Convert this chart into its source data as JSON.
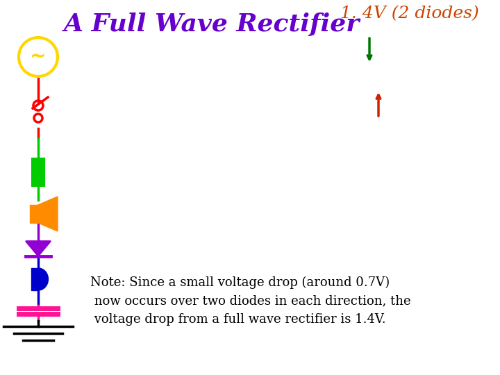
{
  "title": "A Full Wave Rectifier",
  "title_color": "#6600CC",
  "title_fontsize": 26,
  "title_style": "italic",
  "subtitle": "1. 4V (2 diodes)",
  "subtitle_color": "#CC4400",
  "subtitle_fontsize": 18,
  "subtitle_style": "italic",
  "note_text": "Note: Since a small voltage drop (around 0.7V)\n now occurs over two diodes in each direction, the\n voltage drop from a full wave rectifier is 1.4V.",
  "note_fontsize": 13,
  "note_color": "#000000",
  "bg_color": "#FFFFFF",
  "ac_source_color": "#FFD700",
  "switch_color": "#FF0000",
  "resistor_color": "#00CC00",
  "speaker_color": "#FF8C00",
  "diode_color": "#9400D3",
  "led_color": "#0000CC",
  "capacitor_color": "#FF1493",
  "ground_color": "#000000",
  "wire_red": "#FF0000",
  "wire_green": "#00CC00",
  "wire_purple": "#9400D3",
  "wire_blue": "#0000CC",
  "arrow_green": "#007700",
  "arrow_red": "#CC2200",
  "fig_w": 7.2,
  "fig_h": 5.4,
  "dpi": 100
}
